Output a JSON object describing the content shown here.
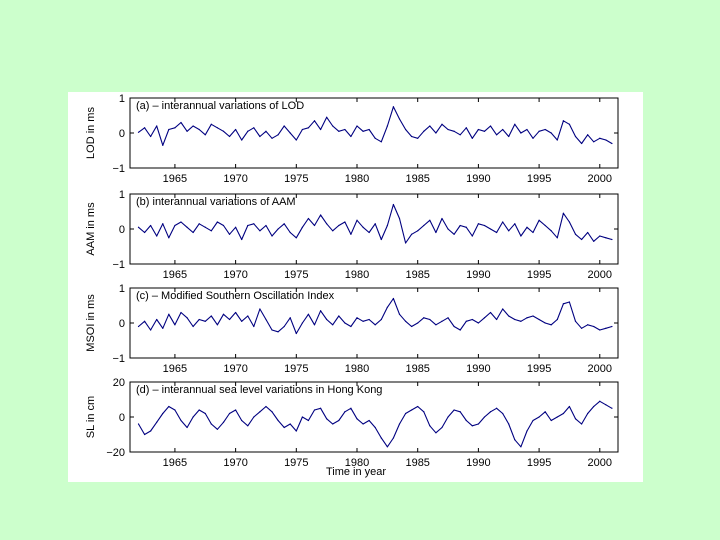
{
  "chart_data": [
    {
      "type": "line",
      "title": "(a) – interannual variations of LOD",
      "ylabel": "LOD in ms",
      "ylim": [
        -1,
        1
      ],
      "yticks": [
        -1,
        0,
        1
      ],
      "ytick_labels": [
        "−1",
        "0",
        "1"
      ],
      "xlim": [
        1961.3,
        2001.5
      ],
      "xticks": [
        1965,
        1970,
        1975,
        1980,
        1985,
        1990,
        1995,
        2000
      ],
      "xtick_labels": [
        "1965",
        "1970",
        "1975",
        "1980",
        "1985",
        "1990",
        "1995",
        "2000"
      ],
      "grid": false,
      "series": [
        {
          "name": "LOD",
          "x": [
            1962.0,
            1962.5,
            1963.0,
            1963.5,
            1964.0,
            1964.5,
            1965.0,
            1965.5,
            1966.0,
            1966.5,
            1967.0,
            1967.5,
            1968.0,
            1968.5,
            1969.0,
            1969.5,
            1970.0,
            1970.5,
            1971.0,
            1971.5,
            1972.0,
            1972.5,
            1973.0,
            1973.5,
            1974.0,
            1974.5,
            1975.0,
            1975.5,
            1976.0,
            1976.5,
            1977.0,
            1977.5,
            1978.0,
            1978.5,
            1979.0,
            1979.5,
            1980.0,
            1980.5,
            1981.0,
            1981.5,
            1982.0,
            1982.5,
            1983.0,
            1983.5,
            1984.0,
            1984.5,
            1985.0,
            1985.5,
            1986.0,
            1986.5,
            1987.0,
            1987.5,
            1988.0,
            1988.5,
            1989.0,
            1989.5,
            1990.0,
            1990.5,
            1991.0,
            1991.5,
            1992.0,
            1992.5,
            1993.0,
            1993.5,
            1994.0,
            1994.5,
            1995.0,
            1995.5,
            1996.0,
            1996.5,
            1997.0,
            1997.5,
            1998.0,
            1998.5,
            1999.0,
            1999.5,
            2000.0,
            2000.5,
            2001.0
          ],
          "values": [
            0.02,
            0.15,
            -0.1,
            0.2,
            -0.35,
            0.1,
            0.15,
            0.3,
            0.05,
            0.2,
            0.1,
            -0.05,
            0.25,
            0.15,
            0.05,
            -0.1,
            0.1,
            -0.2,
            0.05,
            0.15,
            -0.1,
            0.05,
            -0.15,
            -0.05,
            0.2,
            0.0,
            -0.2,
            0.1,
            0.15,
            0.35,
            0.1,
            0.45,
            0.2,
            0.05,
            0.1,
            -0.1,
            0.2,
            0.05,
            0.1,
            -0.15,
            -0.25,
            0.2,
            0.75,
            0.4,
            0.1,
            -0.1,
            -0.15,
            0.05,
            0.2,
            0.0,
            0.25,
            0.1,
            0.05,
            -0.05,
            0.15,
            -0.15,
            0.1,
            0.05,
            0.2,
            -0.05,
            0.1,
            -0.1,
            0.25,
            0.0,
            0.1,
            -0.15,
            0.05,
            0.1,
            0.0,
            -0.2,
            0.35,
            0.25,
            -0.1,
            -0.3,
            -0.05,
            -0.25,
            -0.15,
            -0.2,
            -0.3
          ]
        }
      ]
    },
    {
      "type": "line",
      "title": "(b)     interannual variations of AAM",
      "ylabel": "AAM in ms",
      "ylim": [
        -1,
        1
      ],
      "yticks": [
        -1,
        0,
        1
      ],
      "ytick_labels": [
        "−1",
        "0",
        "1"
      ],
      "xlim": [
        1961.3,
        2001.5
      ],
      "xticks": [
        1965,
        1970,
        1975,
        1980,
        1985,
        1990,
        1995,
        2000
      ],
      "xtick_labels": [
        "1965",
        "1970",
        "1975",
        "1980",
        "1985",
        "1990",
        "1995",
        "2000"
      ],
      "grid": false,
      "series": [
        {
          "name": "AAM",
          "x": [
            1962.0,
            1962.5,
            1963.0,
            1963.5,
            1964.0,
            1964.5,
            1965.0,
            1965.5,
            1966.0,
            1966.5,
            1967.0,
            1967.5,
            1968.0,
            1968.5,
            1969.0,
            1969.5,
            1970.0,
            1970.5,
            1971.0,
            1971.5,
            1972.0,
            1972.5,
            1973.0,
            1973.5,
            1974.0,
            1974.5,
            1975.0,
            1975.5,
            1976.0,
            1976.5,
            1977.0,
            1977.5,
            1978.0,
            1978.5,
            1979.0,
            1979.5,
            1980.0,
            1980.5,
            1981.0,
            1981.5,
            1982.0,
            1982.5,
            1983.0,
            1983.5,
            1984.0,
            1984.5,
            1985.0,
            1985.5,
            1986.0,
            1986.5,
            1987.0,
            1987.5,
            1988.0,
            1988.5,
            1989.0,
            1989.5,
            1990.0,
            1990.5,
            1991.0,
            1991.5,
            1992.0,
            1992.5,
            1993.0,
            1993.5,
            1994.0,
            1994.5,
            1995.0,
            1995.5,
            1996.0,
            1996.5,
            1997.0,
            1997.5,
            1998.0,
            1998.5,
            1999.0,
            1999.5,
            2000.0,
            2000.5,
            2001.0
          ],
          "values": [
            0.05,
            -0.1,
            0.1,
            -0.2,
            0.15,
            -0.25,
            0.1,
            0.2,
            0.05,
            -0.1,
            0.15,
            0.05,
            -0.05,
            0.2,
            0.1,
            -0.15,
            0.05,
            -0.3,
            0.1,
            0.15,
            -0.05,
            0.1,
            -0.2,
            0.0,
            0.15,
            -0.1,
            -0.25,
            0.05,
            0.3,
            0.1,
            0.4,
            0.15,
            -0.05,
            0.1,
            0.2,
            -0.15,
            0.25,
            0.05,
            -0.1,
            0.15,
            -0.3,
            0.1,
            0.7,
            0.3,
            -0.4,
            -0.15,
            -0.05,
            0.1,
            0.25,
            -0.1,
            0.3,
            0.0,
            -0.15,
            0.1,
            0.05,
            -0.2,
            0.15,
            0.1,
            0.0,
            -0.1,
            0.2,
            -0.05,
            0.15,
            -0.2,
            0.05,
            -0.1,
            0.25,
            0.1,
            -0.05,
            -0.25,
            0.45,
            0.2,
            -0.15,
            -0.3,
            -0.1,
            -0.35,
            -0.2,
            -0.25,
            -0.3
          ]
        }
      ]
    },
    {
      "type": "line",
      "title": "(c) – Modified Southern Oscillation Index",
      "ylabel": "MSOI in ms",
      "ylim": [
        -1,
        1
      ],
      "yticks": [
        -1,
        0,
        1
      ],
      "ytick_labels": [
        "−1",
        "0",
        "1"
      ],
      "xlim": [
        1961.3,
        2001.5
      ],
      "xticks": [
        1965,
        1970,
        1975,
        1980,
        1985,
        1990,
        1995,
        2000
      ],
      "xtick_labels": [
        "1965",
        "1970",
        "1975",
        "1980",
        "1985",
        "1990",
        "1995",
        "2000"
      ],
      "grid": false,
      "series": [
        {
          "name": "MSOI",
          "x": [
            1962.0,
            1962.5,
            1963.0,
            1963.5,
            1964.0,
            1964.5,
            1965.0,
            1965.5,
            1966.0,
            1966.5,
            1967.0,
            1967.5,
            1968.0,
            1968.5,
            1969.0,
            1969.5,
            1970.0,
            1970.5,
            1971.0,
            1971.5,
            1972.0,
            1972.5,
            1973.0,
            1973.5,
            1974.0,
            1974.5,
            1975.0,
            1975.5,
            1976.0,
            1976.5,
            1977.0,
            1977.5,
            1978.0,
            1978.5,
            1979.0,
            1979.5,
            1980.0,
            1980.5,
            1981.0,
            1981.5,
            1982.0,
            1982.5,
            1983.0,
            1983.5,
            1984.0,
            1984.5,
            1985.0,
            1985.5,
            1986.0,
            1986.5,
            1987.0,
            1987.5,
            1988.0,
            1988.5,
            1989.0,
            1989.5,
            1990.0,
            1990.5,
            1991.0,
            1991.5,
            1992.0,
            1992.5,
            1993.0,
            1993.5,
            1994.0,
            1994.5,
            1995.0,
            1995.5,
            1996.0,
            1996.5,
            1997.0,
            1997.5,
            1998.0,
            1998.5,
            1999.0,
            1999.5,
            2000.0,
            2000.5,
            2001.0
          ],
          "values": [
            -0.1,
            0.05,
            -0.2,
            0.1,
            -0.15,
            0.25,
            -0.05,
            0.3,
            0.15,
            -0.1,
            0.1,
            0.05,
            0.2,
            -0.05,
            0.25,
            0.1,
            0.3,
            0.05,
            0.2,
            -0.1,
            0.4,
            0.1,
            -0.2,
            -0.25,
            -0.1,
            0.15,
            -0.3,
            0.0,
            0.25,
            -0.05,
            0.35,
            0.1,
            -0.05,
            0.2,
            0.0,
            -0.1,
            0.15,
            0.05,
            0.1,
            -0.05,
            0.1,
            0.45,
            0.7,
            0.25,
            0.05,
            -0.1,
            0.0,
            0.15,
            0.1,
            -0.05,
            0.05,
            0.15,
            -0.1,
            -0.2,
            0.05,
            0.1,
            0.0,
            0.15,
            0.3,
            0.1,
            0.4,
            0.2,
            0.1,
            0.05,
            0.15,
            0.2,
            0.1,
            0.0,
            -0.05,
            0.1,
            0.55,
            0.6,
            0.05,
            -0.15,
            -0.05,
            -0.1,
            -0.2,
            -0.15,
            -0.1
          ]
        }
      ]
    },
    {
      "type": "line",
      "title": "(d) – interannual sea level variations in Hong Kong",
      "ylabel": "SL in cm",
      "xlabel": "Time in year",
      "ylim": [
        -20,
        20
      ],
      "yticks": [
        -20,
        0,
        20
      ],
      "ytick_labels": [
        "−20",
        "0",
        "20"
      ],
      "xlim": [
        1961.3,
        2001.5
      ],
      "xticks": [
        1965,
        1970,
        1975,
        1980,
        1985,
        1990,
        1995,
        2000
      ],
      "xtick_labels": [
        "1965",
        "1970",
        "1975",
        "1980",
        "1985",
        "1990",
        "1995",
        "2000"
      ],
      "grid": false,
      "series": [
        {
          "name": "SL",
          "x": [
            1962.0,
            1962.5,
            1963.0,
            1963.5,
            1964.0,
            1964.5,
            1965.0,
            1965.5,
            1966.0,
            1966.5,
            1967.0,
            1967.5,
            1968.0,
            1968.5,
            1969.0,
            1969.5,
            1970.0,
            1970.5,
            1971.0,
            1971.5,
            1972.0,
            1972.5,
            1973.0,
            1973.5,
            1974.0,
            1974.5,
            1975.0,
            1975.5,
            1976.0,
            1976.5,
            1977.0,
            1977.5,
            1978.0,
            1978.5,
            1979.0,
            1979.5,
            1980.0,
            1980.5,
            1981.0,
            1981.5,
            1982.0,
            1982.5,
            1983.0,
            1983.5,
            1984.0,
            1984.5,
            1985.0,
            1985.5,
            1986.0,
            1986.5,
            1987.0,
            1987.5,
            1988.0,
            1988.5,
            1989.0,
            1989.5,
            1990.0,
            1990.5,
            1991.0,
            1991.5,
            1992.0,
            1992.5,
            1993.0,
            1993.5,
            1994.0,
            1994.5,
            1995.0,
            1995.5,
            1996.0,
            1996.5,
            1997.0,
            1997.5,
            1998.0,
            1998.5,
            1999.0,
            1999.5,
            2000.0,
            2000.5,
            2001.0
          ],
          "values": [
            -4,
            -10,
            -8,
            -3,
            2,
            6,
            4,
            -2,
            -6,
            0,
            4,
            2,
            -4,
            -7,
            -3,
            2,
            4,
            -2,
            -5,
            0,
            3,
            6,
            3,
            -2,
            -6,
            -4,
            -8,
            0,
            -2,
            4,
            5,
            -1,
            -4,
            -2,
            3,
            5,
            -1,
            -4,
            -2,
            -6,
            -12,
            -17,
            -12,
            -4,
            2,
            4,
            6,
            3,
            -5,
            -9,
            -6,
            0,
            4,
            3,
            -2,
            -5,
            -4,
            0,
            3,
            5,
            2,
            -4,
            -13,
            -17,
            -8,
            -2,
            0,
            3,
            -2,
            0,
            2,
            6,
            -1,
            -4,
            2,
            6,
            9,
            7,
            5
          ]
        }
      ]
    }
  ]
}
